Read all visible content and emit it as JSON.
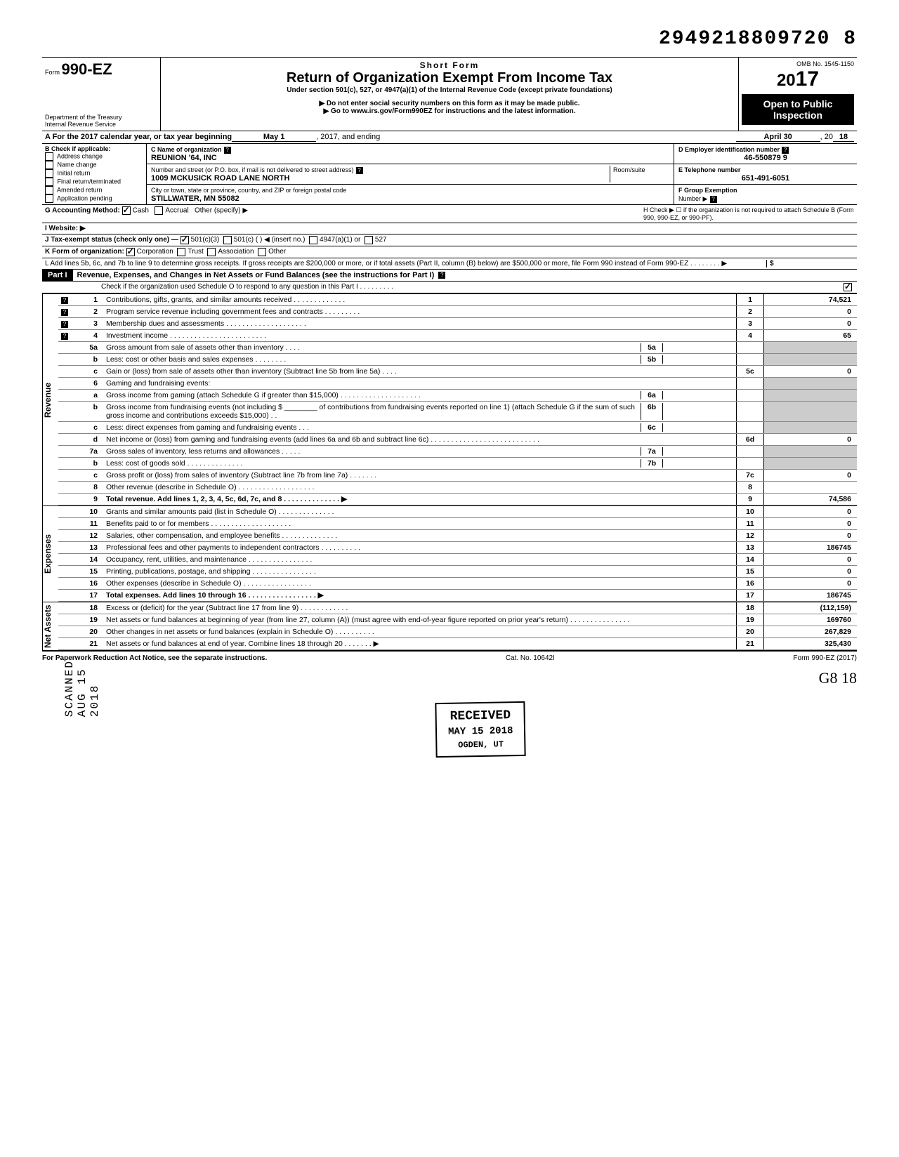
{
  "doc_id": "2949218809720  8",
  "header": {
    "form_prefix": "Form",
    "form_number": "990-EZ",
    "short_form": "Short Form",
    "title": "Return of Organization Exempt From Income Tax",
    "subtitle": "Under section 501(c), 527, or 4947(a)(1) of the Internal Revenue Code (except private foundations)",
    "warn1": "▶ Do not enter social security numbers on this form as it may be made public.",
    "warn2": "▶ Go to www.irs.gov/Form990EZ for instructions and the latest information.",
    "dept": "Department of the Treasury\nInternal Revenue Service",
    "omb": "OMB No. 1545-1150",
    "year": "2017",
    "open_public": "Open to Public Inspection"
  },
  "lineA": {
    "prefix": "A  For the 2017 calendar year, or tax year beginning",
    "begin": "May 1",
    "mid": ", 2017, and ending",
    "end_month": "April 30",
    "end_yr_prefix": ", 20",
    "end_yr": "18"
  },
  "colB": {
    "title": "B  Check if applicable:",
    "items": [
      "Address change",
      "Name change",
      "Initial return",
      "Final return/terminated",
      "Amended return",
      "Application pending"
    ]
  },
  "colC": {
    "c_label": "C  Name of organization",
    "c_value": "REUNION '64, INC",
    "addr_label": "Number and street (or P.O. box, if mail is not delivered to street address)",
    "addr_value": "1009 MCKUSICK ROAD LANE NORTH",
    "room_label": "Room/suite",
    "city_label": "City or town, state or province, country, and ZIP or foreign postal code",
    "city_value": "STILLWATER, MN 55082"
  },
  "colD": {
    "d_label": "D Employer identification number",
    "d_value": "46-550879 9",
    "e_label": "E  Telephone number",
    "e_value": "651-491-6051",
    "f_label": "F  Group Exemption",
    "f_sub": "Number ▶"
  },
  "rowG": {
    "g": "G  Accounting Method:",
    "cash": "Cash",
    "accrual": "Accrual",
    "other": "Other (specify) ▶",
    "h": "H  Check ▶ ☐ if the organization is not required to attach Schedule B (Form 990, 990-EZ, or 990-PF)."
  },
  "rowI": {
    "label": "I   Website: ▶"
  },
  "rowJ": {
    "label": "J  Tax-exempt status (check only one) —",
    "opts": [
      "501(c)(3)",
      "501(c) (        ) ◀ (insert no.)",
      "4947(a)(1) or",
      "527"
    ]
  },
  "rowK": {
    "label": "K  Form of organization:",
    "opts": [
      "Corporation",
      "Trust",
      "Association",
      "Other"
    ]
  },
  "rowL": {
    "text": "L  Add lines 5b, 6c, and 7b to line 9 to determine gross receipts. If gross receipts are $200,000 or more, or if total assets (Part II, column (B) below) are $500,000 or more, file Form 990 instead of Form 990-EZ .   .   .   .   .   .   .   .   ▶",
    "sym": "$"
  },
  "part1": {
    "label": "Part I",
    "title": "Revenue, Expenses, and Changes in Net Assets or Fund Balances (see the instructions for Part I)",
    "check": "Check if the organization used Schedule O to respond to any question in this Part I  .   .   .   .   .   .   .   .   ."
  },
  "sections": {
    "revenue": "Revenue",
    "expenses": "Expenses",
    "netassets": "Net Assets"
  },
  "lines": [
    {
      "n": "1",
      "d": "Contributions, gifts, grants, and similar amounts received .   .   .   .   .   .   .   .   .   .   .   .   .",
      "b": "1",
      "a": "74,521"
    },
    {
      "n": "2",
      "d": "Program service revenue including government fees and contracts   .   .   .   .   .   .   .   .   .",
      "b": "2",
      "a": "0"
    },
    {
      "n": "3",
      "d": "Membership dues and assessments .   .   .   .   .   .   .   .   .   .   .   .   .   .   .   .   .   .   .   .",
      "b": "3",
      "a": "0"
    },
    {
      "n": "4",
      "d": "Investment income    .   .   .   .   .   .   .   .   .   .   .   .   .   .   .   .   .   .   .   .   .   .   .   .",
      "b": "4",
      "a": "65"
    },
    {
      "n": "5a",
      "d": "Gross amount from sale of assets other than inventory   .   .   .   .",
      "ib": "5a",
      "ia": ""
    },
    {
      "n": "b",
      "d": "Less: cost or other basis and sales expenses .   .   .   .   .   .   .   .",
      "ib": "5b",
      "ia": ""
    },
    {
      "n": "c",
      "d": "Gain or (loss) from sale of assets other than inventory (Subtract line 5b from line 5a) .   .   .   .",
      "b": "5c",
      "a": "0"
    },
    {
      "n": "6",
      "d": "Gaming and fundraising events:"
    },
    {
      "n": "a",
      "d": "Gross income from gaming (attach Schedule G if greater than $15,000) .   .   .   .   .   .   .   .   .   .   .   .   .   .   .   .   .   .   .   .",
      "ib": "6a",
      "ia": ""
    },
    {
      "n": "b",
      "d": "Gross income from fundraising events (not including  $ ________ of contributions from fundraising events reported on line 1) (attach Schedule G if the sum of such gross income and contributions exceeds $15,000) .   .",
      "ib": "6b",
      "ia": ""
    },
    {
      "n": "c",
      "d": "Less: direct expenses from gaming and fundraising events   .   .   .",
      "ib": "6c",
      "ia": ""
    },
    {
      "n": "d",
      "d": "Net income or (loss) from gaming and fundraising events (add lines 6a and 6b and subtract line 6c)   .   .   .   .   .   .   .   .   .   .   .   .   .   .   .   .   .   .   .   .   .   .   .   .   .   .   .",
      "b": "6d",
      "a": "0"
    },
    {
      "n": "7a",
      "d": "Gross sales of inventory, less returns and allowances  .   .   .   .   .",
      "ib": "7a",
      "ia": ""
    },
    {
      "n": "b",
      "d": "Less: cost of goods sold    .   .   .   .   .   .   .   .   .   .   .   .   .   .",
      "ib": "7b",
      "ia": ""
    },
    {
      "n": "c",
      "d": "Gross profit or (loss) from sales of inventory (Subtract line 7b from line 7a)   .   .   .   .   .   .   .",
      "b": "7c",
      "a": "0"
    },
    {
      "n": "8",
      "d": "Other revenue (describe in Schedule O) .   .   .   .   .   .   .   .   .   .   .   .   .   .   .   .   .   .   .",
      "b": "8",
      "a": ""
    },
    {
      "n": "9",
      "d": "Total revenue. Add lines 1, 2, 3, 4, 5c, 6d, 7c, and 8   .   .   .   .   .   .   .   .   .   .   .   .   .   .  ▶",
      "b": "9",
      "a": "74,586",
      "bold": true
    }
  ],
  "exp_lines": [
    {
      "n": "10",
      "d": "Grants and similar amounts paid (list in Schedule O)   .   .   .   .   .   .   .   .   .   .   .   .   .   .",
      "b": "10",
      "a": "0"
    },
    {
      "n": "11",
      "d": "Benefits paid to or for members   .   .   .   .   .   .   .   .   .   .   .   .   .   .   .   .   .   .   .   .",
      "b": "11",
      "a": "0"
    },
    {
      "n": "12",
      "d": "Salaries, other compensation, and employee benefits   .   .   .   .   .   .   .   .   .   .   .   .   .   .",
      "b": "12",
      "a": "0"
    },
    {
      "n": "13",
      "d": "Professional fees and other payments to independent contractors    .   .   .   .   .   .   .   .   .   .",
      "b": "13",
      "a": "186745"
    },
    {
      "n": "14",
      "d": "Occupancy, rent, utilities, and maintenance    .   .   .   .   .   .   .   .   .   .   .   .   .   .   .   .",
      "b": "14",
      "a": "0"
    },
    {
      "n": "15",
      "d": "Printing, publications, postage, and shipping .   .   .   .   .   .   .   .   .   .   .   .   .   .   .   .",
      "b": "15",
      "a": "0"
    },
    {
      "n": "16",
      "d": "Other expenses (describe in Schedule O)   .   .   .   .   .   .   .   .   .   .   .   .   .   .   .   .   .",
      "b": "16",
      "a": "0"
    },
    {
      "n": "17",
      "d": "Total expenses. Add lines 10 through 16 .   .   .   .   .   .   .   .   .   .   .   .   .   .   .   .   .  ▶",
      "b": "17",
      "a": "186745",
      "bold": true
    }
  ],
  "na_lines": [
    {
      "n": "18",
      "d": "Excess or (deficit) for the year (Subtract line 17 from line 9)   .   .   .   .   .   .   .   .   .   .   .   .",
      "b": "18",
      "a": "(112,159)"
    },
    {
      "n": "19",
      "d": "Net assets or fund balances at beginning of year (from line 27, column (A)) (must agree with end-of-year figure reported on prior year's return)   .   .   .   .   .   .   .   .   .   .   .   .   .   .   .",
      "b": "19",
      "a": "169760"
    },
    {
      "n": "20",
      "d": "Other changes in net assets or fund balances (explain in Schedule O) .   .   .   .   .   .   .   .   .   .",
      "b": "20",
      "a": "267,829"
    },
    {
      "n": "21",
      "d": "Net assets or fund balances at end of year. Combine lines 18 through 20   .   .   .   .   .   .   .  ▶",
      "b": "21",
      "a": "325,430"
    }
  ],
  "footer": {
    "left": "For Paperwork Reduction Act Notice, see the separate instructions.",
    "mid": "Cat. No. 10642I",
    "right": "Form 990-EZ (2017)"
  },
  "stamp": {
    "received": "RECEIVED",
    "date": "MAY 15 2018",
    "loc": "OGDEN, UT"
  },
  "scanned": "SCANNED  AUG 15 2018",
  "handwrite": "G8    18"
}
